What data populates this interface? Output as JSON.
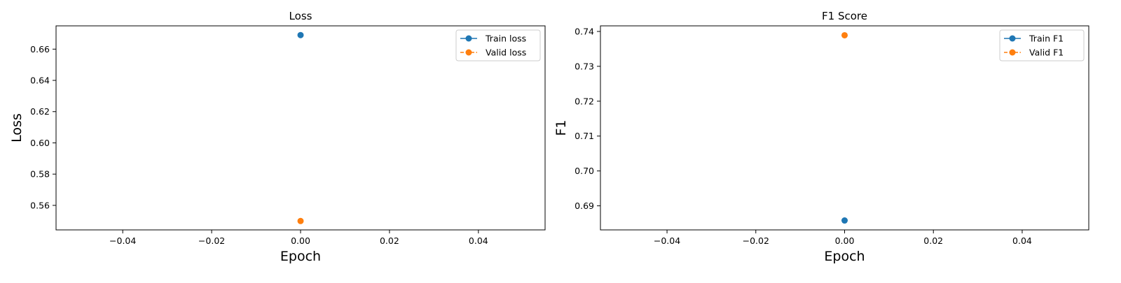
{
  "chart_data": [
    {
      "type": "line",
      "title": "Loss",
      "xlabel": "Epoch",
      "ylabel": "Loss",
      "xlim": [
        -0.055,
        0.055
      ],
      "ylim": [
        0.5443,
        0.6749
      ],
      "xticks": [
        -0.04,
        -0.02,
        0.0,
        0.02,
        0.04
      ],
      "xtick_labels": [
        "−0.04",
        "−0.02",
        "0.00",
        "0.02",
        "0.04"
      ],
      "yticks": [
        0.56,
        0.58,
        0.6,
        0.62,
        0.64,
        0.66
      ],
      "ytick_labels": [
        "0.56",
        "0.58",
        "0.60",
        "0.62",
        "0.64",
        "0.66"
      ],
      "grid": false,
      "legend_position": "top-right",
      "series": [
        {
          "name": "Train loss",
          "x": [
            0
          ],
          "y": [
            0.669
          ],
          "color": "#1f77b4",
          "linestyle": "solid",
          "marker": "circle"
        },
        {
          "name": "Valid loss",
          "x": [
            0
          ],
          "y": [
            0.55
          ],
          "color": "#ff7f0e",
          "linestyle": "dashed",
          "marker": "circle"
        }
      ]
    },
    {
      "type": "line",
      "title": "F1 Score",
      "xlabel": "Epoch",
      "ylabel": "F1",
      "xlim": [
        -0.055,
        0.055
      ],
      "ylim": [
        0.6831,
        0.7416
      ],
      "xticks": [
        -0.04,
        -0.02,
        0.0,
        0.02,
        0.04
      ],
      "xtick_labels": [
        "−0.04",
        "−0.02",
        "0.00",
        "0.02",
        "0.04"
      ],
      "yticks": [
        0.69,
        0.7,
        0.71,
        0.72,
        0.73,
        0.74
      ],
      "ytick_labels": [
        "0.69",
        "0.70",
        "0.71",
        "0.72",
        "0.73",
        "0.74"
      ],
      "grid": false,
      "legend_position": "top-right",
      "series": [
        {
          "name": "Train F1",
          "x": [
            0
          ],
          "y": [
            0.6858
          ],
          "color": "#1f77b4",
          "linestyle": "solid",
          "marker": "circle"
        },
        {
          "name": "Valid F1",
          "x": [
            0
          ],
          "y": [
            0.7389
          ],
          "color": "#ff7f0e",
          "linestyle": "dashed",
          "marker": "circle"
        }
      ]
    }
  ]
}
